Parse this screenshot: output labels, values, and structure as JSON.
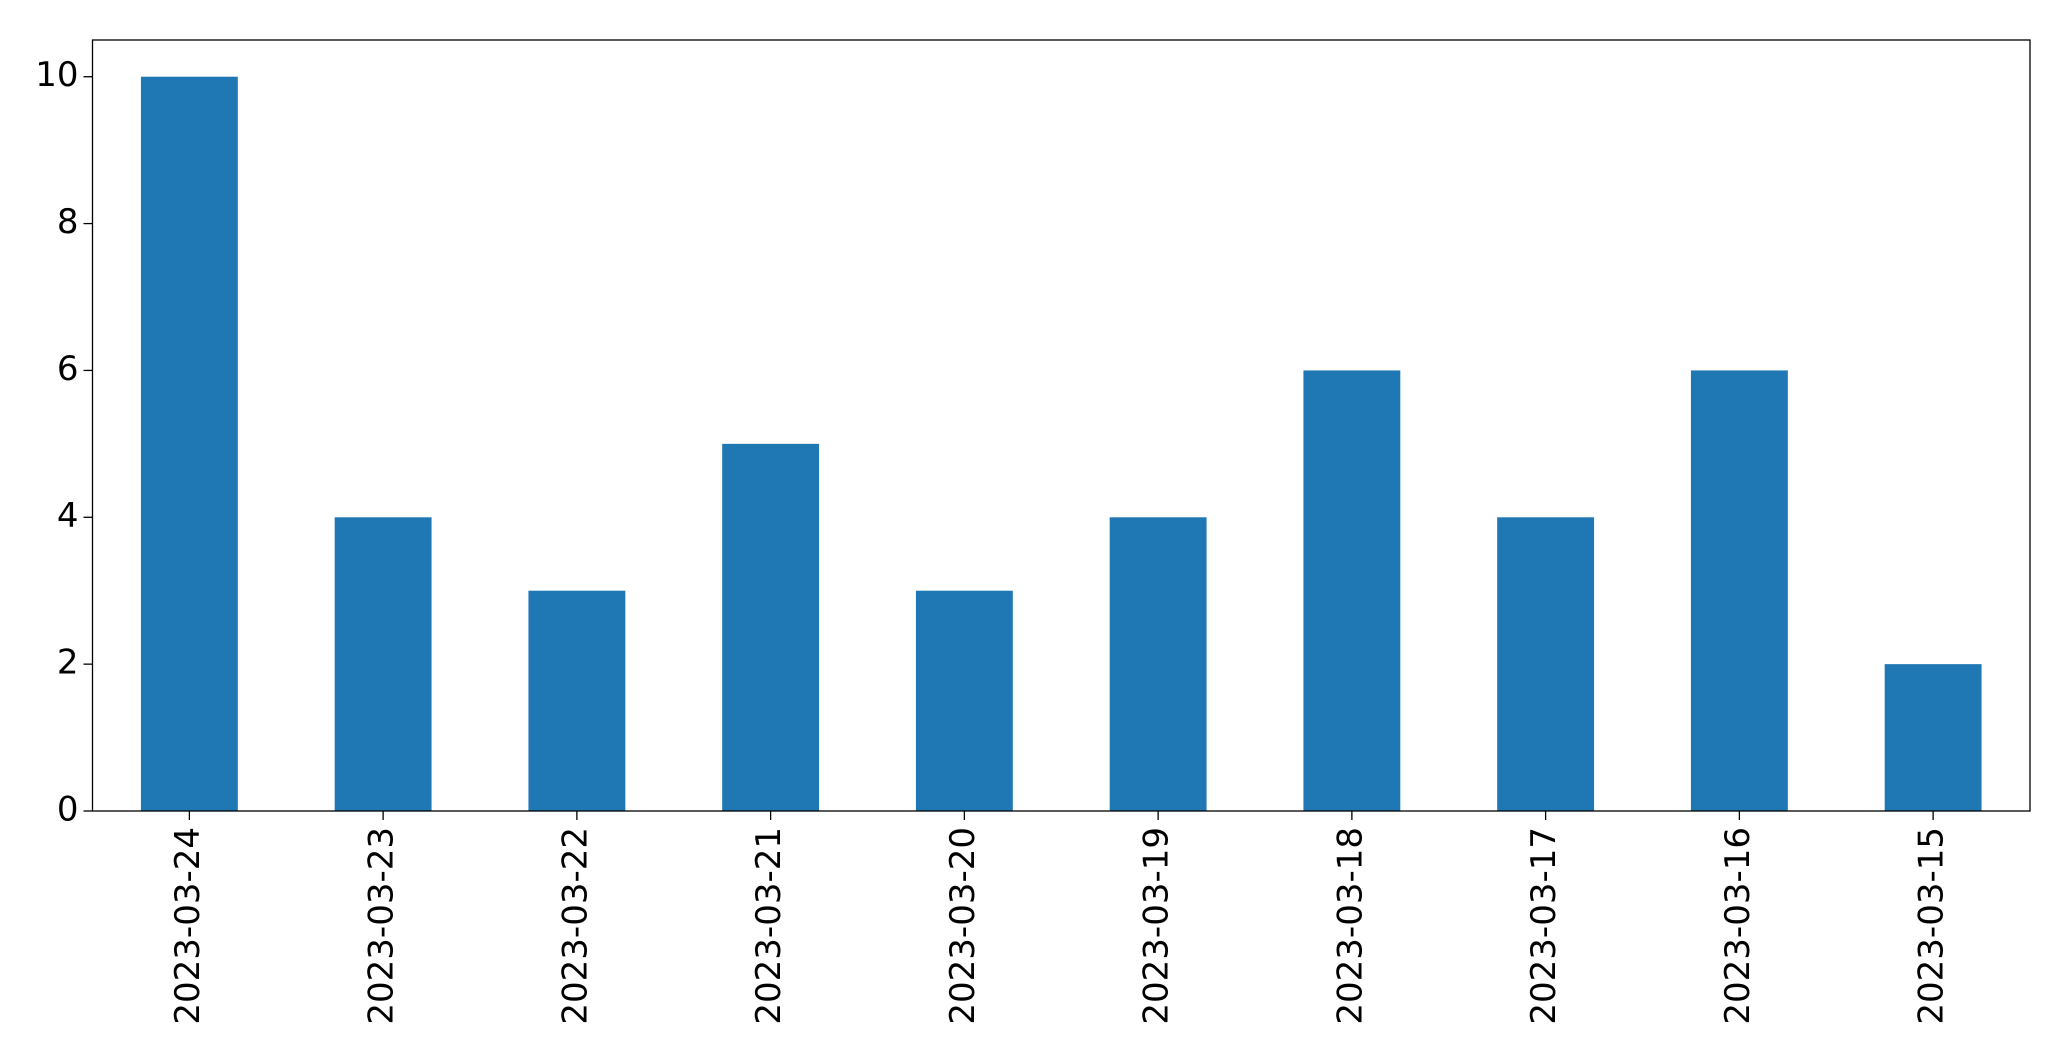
{
  "chart_data": {
    "type": "bar",
    "categories": [
      "2023-03-24",
      "2023-03-23",
      "2023-03-22",
      "2023-03-21",
      "2023-03-20",
      "2023-03-19",
      "2023-03-18",
      "2023-03-17",
      "2023-03-16",
      "2023-03-15"
    ],
    "values": [
      10,
      4,
      3,
      5,
      3,
      4,
      6,
      4,
      6,
      2
    ],
    "color": "#1f77b4",
    "ylim": [
      0,
      10.5
    ],
    "yticks": [
      0,
      2,
      4,
      6,
      8,
      10
    ],
    "grid": false
  }
}
